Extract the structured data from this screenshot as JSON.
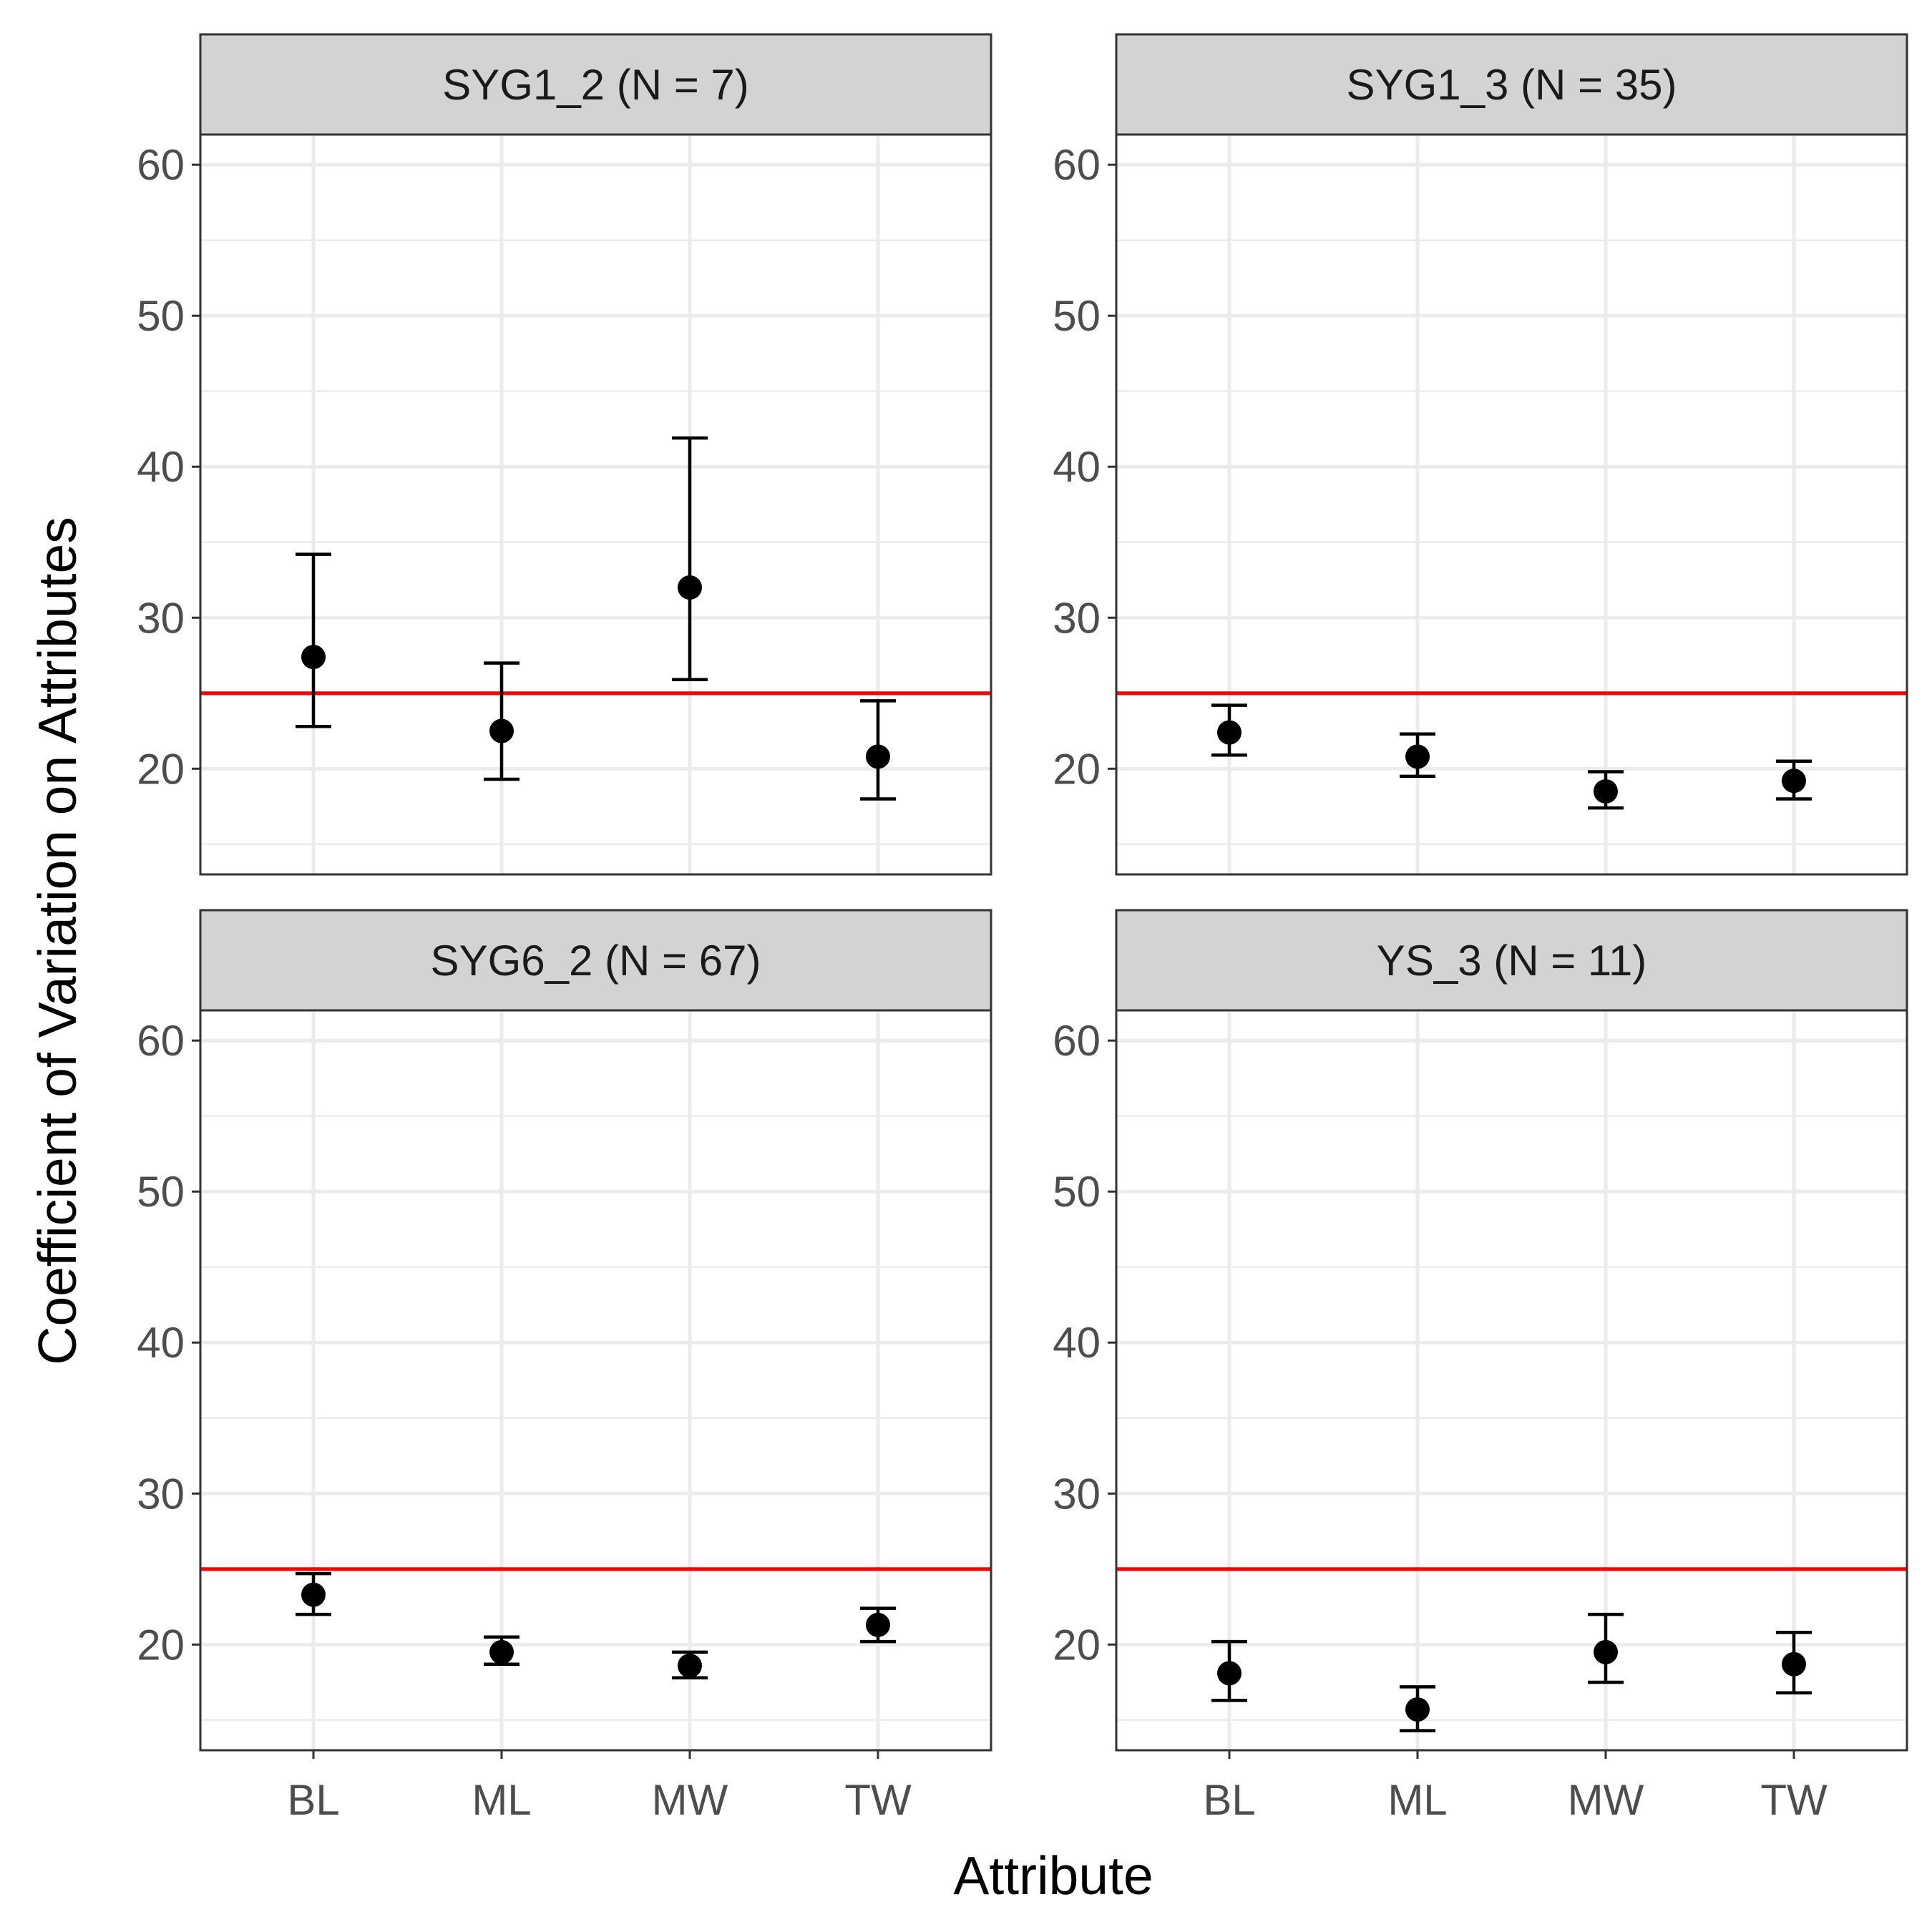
{
  "chart_data": {
    "type": "scatter",
    "xlabel": "Attribute",
    "ylabel": "Coefficient of Variation on Attributes",
    "categories": [
      "BL",
      "ML",
      "MW",
      "TW"
    ],
    "ylim": [
      13,
      62
    ],
    "yticks": [
      20,
      30,
      40,
      50,
      60
    ],
    "reference_line": {
      "y": 25,
      "color": "#ff0000"
    },
    "grid": true,
    "panels": [
      {
        "title": "SYG1_2 (N = 7)",
        "points": [
          {
            "x": "BL",
            "y": 27.4,
            "lower": 22.8,
            "upper": 34.2
          },
          {
            "x": "ML",
            "y": 22.5,
            "lower": 19.3,
            "upper": 27.0
          },
          {
            "x": "MW",
            "y": 32.0,
            "lower": 25.9,
            "upper": 41.9
          },
          {
            "x": "TW",
            "y": 20.8,
            "lower": 18.0,
            "upper": 24.5
          }
        ]
      },
      {
        "title": "SYG1_3 (N = 35)",
        "points": [
          {
            "x": "BL",
            "y": 22.4,
            "lower": 20.9,
            "upper": 24.2
          },
          {
            "x": "ML",
            "y": 20.8,
            "lower": 19.5,
            "upper": 22.3
          },
          {
            "x": "MW",
            "y": 18.5,
            "lower": 17.4,
            "upper": 19.8
          },
          {
            "x": "TW",
            "y": 19.2,
            "lower": 18.0,
            "upper": 20.5
          }
        ]
      },
      {
        "title": "SYG6_2 (N = 67)",
        "points": [
          {
            "x": "BL",
            "y": 23.3,
            "lower": 22.0,
            "upper": 24.7
          },
          {
            "x": "ML",
            "y": 19.5,
            "lower": 18.7,
            "upper": 20.5
          },
          {
            "x": "MW",
            "y": 18.6,
            "lower": 17.8,
            "upper": 19.5
          },
          {
            "x": "TW",
            "y": 21.3,
            "lower": 20.2,
            "upper": 22.4
          }
        ]
      },
      {
        "title": "YS_3 (N = 11)",
        "points": [
          {
            "x": "BL",
            "y": 18.1,
            "lower": 16.3,
            "upper": 20.2
          },
          {
            "x": "ML",
            "y": 15.7,
            "lower": 14.3,
            "upper": 17.2
          },
          {
            "x": "MW",
            "y": 19.5,
            "lower": 17.5,
            "upper": 22.0
          },
          {
            "x": "TW",
            "y": 18.7,
            "lower": 16.8,
            "upper": 20.8
          }
        ]
      }
    ]
  },
  "colors": {
    "reference_line": "#ff0000",
    "points": "#000000",
    "strip_background": "#d3d3d3",
    "grid": "#ebebeb"
  }
}
